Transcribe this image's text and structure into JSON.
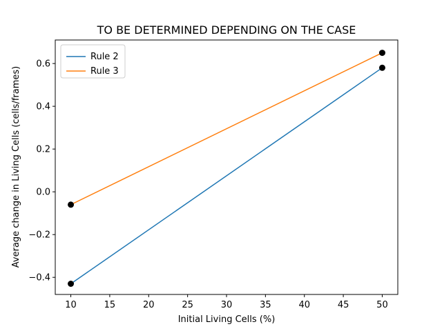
{
  "chart_data": {
    "type": "line",
    "title": "TO BE DETERMINED DEPENDING ON THE CASE",
    "xlabel": "Initial Living Cells (%)",
    "ylabel": "Average change in Living Cells (cells/frames)",
    "xlim": [
      8,
      52
    ],
    "ylim": [
      -0.48,
      0.71
    ],
    "xticks": [
      10,
      15,
      20,
      25,
      30,
      35,
      40,
      45,
      50
    ],
    "yticks": [
      -0.4,
      -0.2,
      0.0,
      0.2,
      0.4,
      0.6
    ],
    "ytick_labels": [
      "−0.4",
      "−0.2",
      "0.0",
      "0.2",
      "0.4",
      "0.6"
    ],
    "grid": false,
    "legend_position": "upper-left",
    "series": [
      {
        "name": "Rule 2",
        "color": "#1f77b4",
        "x": [
          10,
          50
        ],
        "y": [
          -0.43,
          0.58
        ]
      },
      {
        "name": "Rule 3",
        "color": "#ff7f0e",
        "x": [
          10,
          50
        ],
        "y": [
          -0.06,
          0.65
        ]
      }
    ],
    "marker_color": "#000000"
  }
}
